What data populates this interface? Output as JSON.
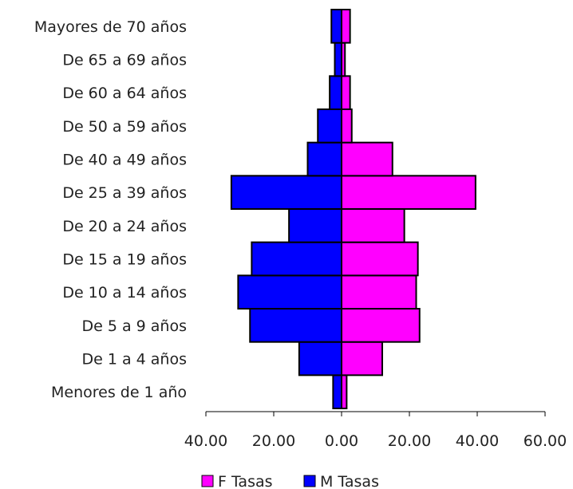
{
  "chart_data": {
    "type": "bar",
    "orientation": "horizontal",
    "layout": "population-pyramid",
    "categories": [
      "Menores de 1 año",
      "De 1 a 4 años",
      "De 5 a 9 años",
      "De 10 a 14 años",
      "De 15 a 19 años",
      "De 20 a 24 años",
      "De 25 a 39 años",
      "De 40 a 49 años",
      "De 50 a 59 años",
      "De 60 a 64 años",
      "De 65 a 69 años",
      "Mayores de 70 años"
    ],
    "series": [
      {
        "name": "F Tasas",
        "color": "#ff00ff",
        "side": "right",
        "values": [
          1.5,
          12.0,
          23.0,
          22.0,
          22.5,
          18.5,
          39.5,
          15.0,
          3.0,
          2.5,
          1.0,
          2.5
        ]
      },
      {
        "name": "M Tasas",
        "color": "#0000ff",
        "side": "left",
        "values": [
          2.5,
          12.5,
          27.0,
          30.5,
          26.5,
          15.5,
          32.5,
          10.0,
          7.0,
          3.5,
          2.0,
          3.0
        ]
      }
    ],
    "xlim": [
      -40,
      60
    ],
    "xticks": [
      -40,
      -20,
      0,
      20,
      40,
      60
    ],
    "xtick_labels": [
      "40.00",
      "20.00",
      "0.00",
      "20.00",
      "40.00",
      "60.00"
    ],
    "title": "",
    "xlabel": "",
    "ylabel": "",
    "grid": false,
    "legend": {
      "placement": "bottom",
      "entries": [
        "F Tasas",
        "M Tasas"
      ]
    }
  }
}
